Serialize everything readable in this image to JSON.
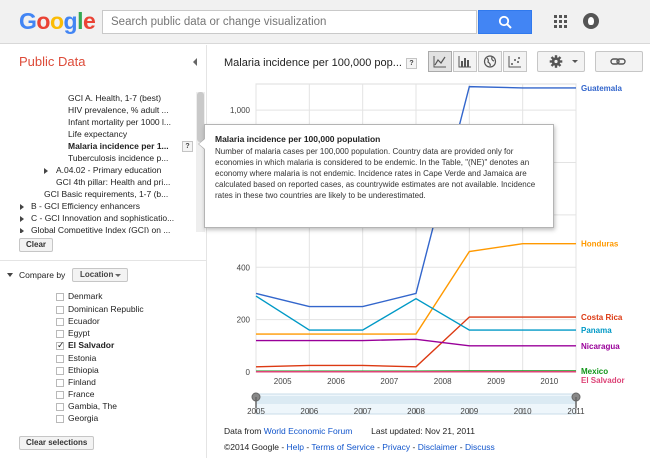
{
  "header": {
    "logo": "Google",
    "search_placeholder": "Search public data or change visualization"
  },
  "sidebar": {
    "title": "Public Data",
    "tree": [
      {
        "label": "GCI A. Health, 1-7 (best)",
        "bold": false
      },
      {
        "label": "HIV prevalence, % adult ...",
        "bold": false
      },
      {
        "label": "Infant mortality per 1000 l...",
        "bold": false
      },
      {
        "label": "Life expectancy",
        "bold": false
      },
      {
        "label": "Malaria incidence per 1...",
        "bold": true
      },
      {
        "label": "Tuberculosis incidence p...",
        "bold": false
      },
      {
        "label": "A.04.02 - Primary education",
        "bold": false
      },
      {
        "label": "GCI 4th pillar: Health and pri...",
        "bold": false
      },
      {
        "label": "GCI Basic requirements, 1-7 (b...",
        "bold": false
      },
      {
        "label": "B - GCI Efficiency enhancers",
        "bold": false
      },
      {
        "label": "C - GCI Innovation and sophisticatio...",
        "bold": false
      },
      {
        "label": "Global Competitive Index (GCI) on ...",
        "bold": false
      }
    ],
    "help_label": "?",
    "clear_label": "Clear",
    "compare_label": "Compare by",
    "compare_value": "Location",
    "countries": [
      {
        "name": "Denmark",
        "checked": false
      },
      {
        "name": "Dominican Republic",
        "checked": false
      },
      {
        "name": "Ecuador",
        "checked": false
      },
      {
        "name": "Egypt",
        "checked": false
      },
      {
        "name": "El Salvador",
        "checked": true
      },
      {
        "name": "Estonia",
        "checked": false
      },
      {
        "name": "Ethiopia",
        "checked": false
      },
      {
        "name": "Finland",
        "checked": false
      },
      {
        "name": "France",
        "checked": false
      },
      {
        "name": "Gambia, The",
        "checked": false
      },
      {
        "name": "Georgia",
        "checked": false
      }
    ],
    "clear_selections_label": "Clear selections"
  },
  "main": {
    "chart_title": "Malaria incidence per 100,000 pop...",
    "help_label": "?"
  },
  "tooltip": {
    "title": "Malaria incidence per 100,000 population",
    "body": "Number of malaria cases per 100,000 population. Country data are provided only for economies in which malaria is considered to be endemic. In the Table, \"(NE)\" denotes an economy where malaria is not endemic. Incidence rates in Cape Verde and Jamaica are calculated based on reported cases, as countrywide estimates are not available. Incidence rates in these two countries are likely to be underestimated."
  },
  "footer": {
    "data_from": "Data from",
    "source_link": "World Economic Forum",
    "last_updated": "Last updated: Nov 21, 2011",
    "copyright": "©2014 Google",
    "links": [
      "Help",
      "Terms of Service",
      "Privacy",
      "Disclaimer",
      "Discuss"
    ]
  },
  "chart_data": {
    "type": "line",
    "title": "Malaria incidence per 100,000 pop...",
    "x": [
      2005,
      2006,
      2007,
      2008,
      2009,
      2010,
      2011
    ],
    "x_ticks": [
      "2005",
      "2006",
      "2007",
      "2008",
      "2009",
      "2010"
    ],
    "y_ticks": [
      "0",
      "200",
      "400",
      "1,000"
    ],
    "ylim": [
      0,
      1100
    ],
    "grid": true,
    "legend_placement": "right",
    "series": [
      {
        "name": "Guatemala",
        "color": "#3366cc",
        "values": [
          300,
          250,
          250,
          300,
          1090,
          1085,
          1085
        ]
      },
      {
        "name": "Honduras",
        "color": "#ff9900",
        "values": [
          145,
          145,
          145,
          145,
          460,
          490,
          490
        ]
      },
      {
        "name": "Costa Rica",
        "color": "#dc3912",
        "values": [
          20,
          25,
          25,
          20,
          210,
          210,
          210
        ]
      },
      {
        "name": "Panama",
        "color": "#0099c6",
        "values": [
          290,
          160,
          160,
          280,
          160,
          160,
          160
        ]
      },
      {
        "name": "Nicaragua",
        "color": "#990099",
        "values": [
          120,
          120,
          120,
          125,
          100,
          100,
          100
        ]
      },
      {
        "name": "Mexico",
        "color": "#109618",
        "values": [
          3,
          3,
          3,
          3,
          4,
          4,
          4
        ]
      },
      {
        "name": "El Salvador",
        "color": "#dd4477",
        "values": [
          1,
          1,
          1,
          1,
          1,
          1,
          1
        ]
      }
    ],
    "timeline_labels": [
      "2005",
      "2006",
      "2007",
      "2008",
      "2009",
      "2010",
      "2011"
    ]
  }
}
